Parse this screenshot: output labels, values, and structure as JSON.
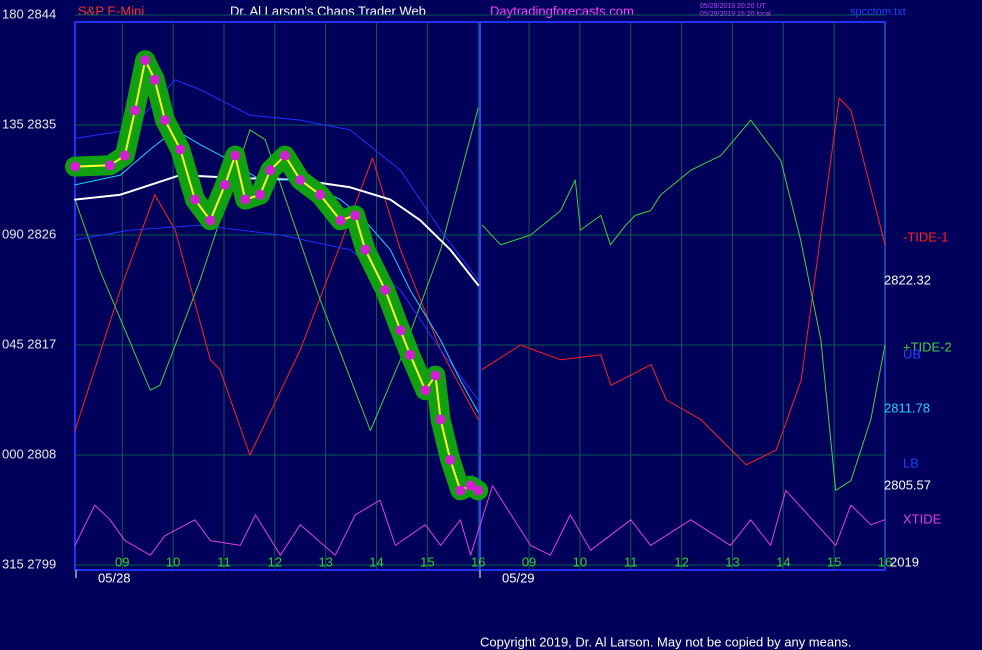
{
  "chart_data": {
    "type": "line",
    "title": "Dr. Al Larson's Chaos Trader Web",
    "instrument": "S&P E-Mini",
    "website": "Daytradingforecasts.com",
    "timestamps": [
      "05/29/2019 20:20 UT",
      "05/29/2019 15:20 local"
    ],
    "file": "spcctom.txt",
    "copyright": "Copyright 2019, Dr. Al Larson. May not be copied by any means.",
    "sessions": [
      "05/28",
      "05/29"
    ],
    "annotations": [
      "-TIDE-1",
      "2822.32",
      "UB",
      "2811.78",
      "LB",
      "2805.57",
      "2019"
    ],
    "xlim": [
      8.07,
      24.0
    ],
    "xticks": [
      {
        "value": 9,
        "label": "09"
      },
      10,
      11,
      12,
      13,
      14,
      15,
      16,
      {
        "value": 17,
        "label": "09"
      },
      {
        "value": 18,
        "label": "10"
      },
      {
        "value": 19,
        "label": "11"
      },
      {
        "value": 20,
        "label": "12"
      },
      {
        "value": 21,
        "label": "13"
      },
      {
        "value": 22,
        "label": "14"
      },
      {
        "value": 23,
        "label": "15"
      },
      {
        "value": 24,
        "label": "16"
      }
    ],
    "ylim": [
      2799,
      2844
    ],
    "yticks": [
      {
        "value": 2844,
        "label": "180 2844"
      },
      {
        "value": 2835,
        "label": "135 2835"
      },
      {
        "value": 2826,
        "label": "090 2826"
      },
      {
        "value": 2817,
        "label": "045 2817"
      },
      {
        "value": 2808,
        "label": "000 2808"
      },
      {
        "value": 2799,
        "label": "315 2799"
      }
    ],
    "grid": true,
    "series": [
      {
        "name": "-TIDE-1",
        "color": "#ff2020",
        "x": [
          8.07,
          8.96,
          9.64,
          10.04,
          10.73,
          10.92,
          11.51,
          12.5,
          13.29,
          13.92,
          14.47,
          15.26,
          16.0,
          16.04,
          16.08,
          16.83,
          17.62,
          18.41,
          18.61,
          19.4,
          19.7,
          20.38,
          21.27,
          21.86,
          22.35,
          23.1,
          23.33,
          24.0
        ],
        "values": [
          2810.0,
          2821.5,
          2829.3,
          2826.4,
          2815.8,
          2815.0,
          2808.0,
          2816.6,
          2825.2,
          2832.3,
          2824.8,
          2816.6,
          2810.9,
          null,
          2815.0,
          2817.0,
          2815.8,
          2816.2,
          2813.7,
          2815.4,
          2812.5,
          2810.9,
          2807.2,
          2808.4,
          2814.1,
          2837.2,
          2836.2,
          2825.2
        ]
      },
      {
        "name": "+TIDE-2",
        "color": "#40d040",
        "x": [
          8.07,
          8.56,
          9.55,
          9.74,
          10.53,
          11.51,
          11.81,
          12.89,
          13.88,
          14.47,
          15.26,
          16.0,
          16.04,
          16.08,
          16.44,
          17.03,
          17.62,
          17.91,
          18.01,
          18.41,
          18.6,
          18.9,
          19.09,
          19.39,
          19.59,
          20.18,
          20.77,
          21.36,
          21.95,
          22.34,
          22.74,
          23.03,
          23.33,
          23.72,
          24.0
        ],
        "values": [
          2828.9,
          2823.1,
          2813.3,
          2813.7,
          2822.3,
          2834.6,
          2833.8,
          2820.7,
          2810.0,
          2815.8,
          2824.8,
          2836.4,
          null,
          2826.8,
          2825.2,
          2826.0,
          2828.0,
          2830.5,
          2826.4,
          2827.6,
          2825.2,
          2826.8,
          2827.6,
          2828.0,
          2829.3,
          2831.3,
          2832.5,
          2835.4,
          2832.1,
          2825.6,
          2817.4,
          2805.1,
          2805.9,
          2810.9,
          2817.0
        ]
      },
      {
        "name": "XTIDE",
        "color": "#e040e0",
        "x": [
          8.07,
          8.46,
          8.76,
          9.05,
          9.55,
          9.84,
          10.43,
          10.73,
          11.32,
          11.62,
          12.11,
          12.5,
          13.19,
          13.58,
          14.07,
          14.37,
          14.96,
          15.26,
          15.65,
          15.85,
          16.28,
          17.03,
          17.42,
          17.81,
          18.21,
          19.0,
          19.39,
          20.18,
          20.96,
          21.36,
          21.75,
          22.05,
          23.03,
          23.33,
          23.72,
          24.0
        ],
        "values": [
          2800.6,
          2803.9,
          2802.7,
          2801.0,
          2799.8,
          2801.4,
          2802.7,
          2801.0,
          2800.6,
          2803.1,
          2799.8,
          2802.3,
          2799.8,
          2803.1,
          2804.3,
          2800.6,
          2802.3,
          2800.6,
          2802.7,
          2799.8,
          2805.5,
          2800.6,
          2799.8,
          2803.1,
          2800.2,
          2802.7,
          2800.6,
          2802.7,
          2800.6,
          2802.7,
          2800.6,
          2805.1,
          2800.6,
          2803.9,
          2802.3,
          2802.7
        ]
      },
      {
        "color": "#2030ff",
        "x": [
          8.07,
          9.15,
          10.04,
          10.53,
          11.51,
          12.5,
          13.48,
          14.47,
          15.26,
          16.0
        ],
        "values": [
          2833.9,
          2834.6,
          2838.7,
          2837.9,
          2835.8,
          2835.4,
          2834.6,
          2831.3,
          2826.4,
          2822.3
        ]
      },
      {
        "color": "#2030ff",
        "x": [
          8.07,
          9.15,
          10.53,
          12.11,
          13.48,
          14.47,
          15.26,
          16.0
        ],
        "values": [
          2825.6,
          2826.4,
          2826.8,
          2826.0,
          2824.8,
          2821.5,
          2816.6,
          2812.5
        ]
      },
      {
        "color": "#ffffff",
        "x": [
          8.07,
          8.96,
          10.14,
          11.12,
          12.5,
          13.48,
          14.27,
          14.86,
          15.45,
          16.0
        ],
        "values": [
          2828.9,
          2829.3,
          2830.9,
          2830.7,
          2830.5,
          2829.9,
          2828.9,
          2827.2,
          2824.8,
          2821.9
        ]
      },
      {
        "color": "#20d0ff",
        "x": [
          8.07,
          8.96,
          9.55,
          10.04,
          10.53,
          11.12,
          11.71,
          12.5,
          13.29,
          13.68,
          14.27,
          14.66,
          15.26,
          15.65,
          16.0
        ],
        "values": [
          2830.1,
          2830.9,
          2833.0,
          2834.6,
          2833.4,
          2832.1,
          2830.5,
          2830.5,
          2828.9,
          2827.6,
          2824.8,
          2821.5,
          2817.4,
          2814.1,
          2811.5
        ]
      },
      {
        "color": "#ffff30",
        "halo": "#10a010",
        "dots": "#d020d0",
        "x": [
          8.07,
          8.76,
          9.05,
          9.25,
          9.45,
          9.64,
          9.84,
          10.14,
          10.43,
          10.73,
          11.02,
          11.22,
          11.42,
          11.71,
          11.91,
          12.2,
          12.5,
          12.89,
          13.29,
          13.58,
          13.78,
          14.17,
          14.47,
          14.66,
          14.96,
          15.16,
          15.26,
          15.45,
          15.65,
          15.85,
          16.0
        ],
        "values": [
          2831.6,
          2831.7,
          2832.5,
          2836.2,
          2840.3,
          2838.7,
          2835.4,
          2833.0,
          2828.9,
          2827.2,
          2830.1,
          2832.5,
          2828.9,
          2829.3,
          2831.3,
          2832.5,
          2830.5,
          2829.3,
          2827.2,
          2827.6,
          2824.8,
          2821.5,
          2818.2,
          2816.2,
          2813.3,
          2814.5,
          2810.9,
          2807.6,
          2805.1,
          2805.5,
          2805.1
        ]
      }
    ]
  }
}
